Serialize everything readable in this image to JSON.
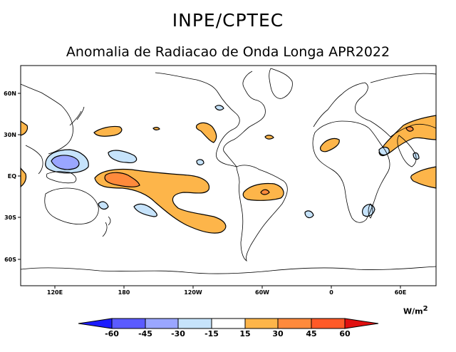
{
  "header": {
    "title": "INPE/CPTEC"
  },
  "map": {
    "title": "Anomalia de Radiacao de Onda Longa APR2022",
    "lat_ticks": [
      "60N",
      "30N",
      "EQ",
      "30S",
      "60S"
    ],
    "lon_ticks": [
      "120E",
      "180",
      "120W",
      "60W",
      "0",
      "60E"
    ]
  },
  "colorbar": {
    "labels": [
      "-60",
      "-45",
      "-30",
      "-15",
      "15",
      "30",
      "45",
      "60"
    ],
    "colors": [
      "#1c1cff",
      "#5b5bff",
      "#9aa6ff",
      "#c6e3fb",
      "#ffffff",
      "#fdb54a",
      "#ff8a3c",
      "#ff5a28",
      "#e01010"
    ],
    "units": "W/m",
    "units_power": "2"
  }
}
